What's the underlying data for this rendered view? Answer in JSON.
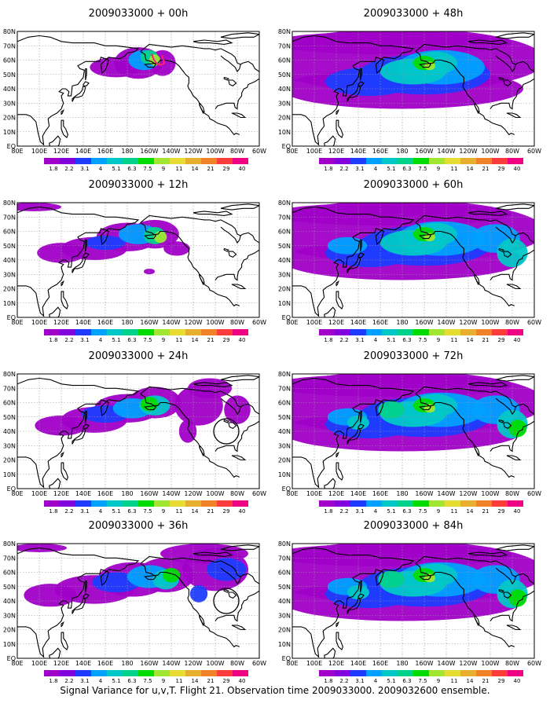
{
  "caption": "Signal Variance for u,v,T. Flight 21. Observation time 2009033000. 2009032600 ensemble.",
  "lon_labels": [
    "80E",
    "100E",
    "120E",
    "140E",
    "160E",
    "180",
    "160W",
    "140W",
    "120W",
    "100W",
    "80W",
    "60W"
  ],
  "lat_labels": [
    "80N",
    "70N",
    "60N",
    "50N",
    "40N",
    "30N",
    "20N",
    "10N",
    "EQ"
  ],
  "colorbar_labels": [
    "1.8",
    "2.2",
    "3.1",
    "4",
    "5.1",
    "6.3",
    "7.5",
    "9",
    "11",
    "14",
    "21",
    "29",
    "40"
  ],
  "colorbar_colors": [
    "#a000c8",
    "#8200dc",
    "#1e3cff",
    "#00a0ff",
    "#00c8c8",
    "#00d28c",
    "#00dc00",
    "#a0e632",
    "#e6dc32",
    "#e6af2d",
    "#f08228",
    "#fa3c3c",
    "#f00082"
  ],
  "panels": [
    {
      "title": "2009033000 + 00h",
      "lead_hours": 0
    },
    {
      "title": "2009033000 + 12h",
      "lead_hours": 12
    },
    {
      "title": "2009033000 + 24h",
      "lead_hours": 24
    },
    {
      "title": "2009033000 + 36h",
      "lead_hours": 36
    },
    {
      "title": "2009033000 + 48h",
      "lead_hours": 48
    },
    {
      "title": "2009033000 + 60h",
      "lead_hours": 60
    },
    {
      "title": "2009033000 + 72h",
      "lead_hours": 72
    },
    {
      "title": "2009033000 + 84h",
      "lead_hours": 84
    }
  ]
}
